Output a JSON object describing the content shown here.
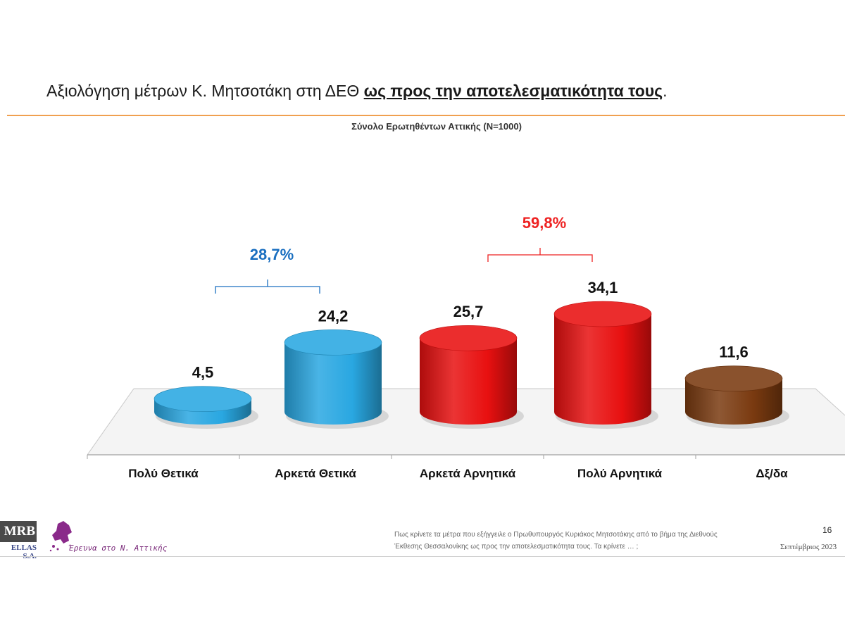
{
  "header": {
    "title_plain": "Αξιολόγηση μέτρων Κ. Μητσοτάκη στη ΔΕΘ ",
    "title_emph": "ως προς την αποτελεσματικότητα τους",
    "title_end": ".",
    "subtitle": "Σύνολο Ερωτηθέντων Αττικής (Ν=1000)"
  },
  "chart_data": {
    "type": "bar",
    "categories": [
      "Πολύ Θετικά",
      "Αρκετά Θετικά",
      "Αρκετά Αρνητικά",
      "Πολύ Αρνητικά",
      "Δξ/δα"
    ],
    "values": [
      4.5,
      24.2,
      25.7,
      34.1,
      11.6
    ],
    "value_labels": [
      "4,5",
      "24,2",
      "25,7",
      "34,1",
      "11,6"
    ],
    "colors": [
      "#29a7e1",
      "#29a7e1",
      "#e81010",
      "#e81010",
      "#7a3a10"
    ],
    "groups": [
      {
        "label": "28,7%",
        "categories": [
          0,
          1
        ],
        "color": "#1a6fc0"
      },
      {
        "label": "59,8%",
        "categories": [
          2,
          3
        ],
        "color": "#ee2222"
      }
    ],
    "title": "",
    "xlabel": "",
    "ylabel": "",
    "grid": false
  },
  "footer": {
    "logo_text": "MRB",
    "logo_subtext": "ELLAS S.A.",
    "brand": "Έρευνα στο Ν. Αττικής",
    "question_line1": "Πως κρίνετε τα μέτρα που εξήγγειλε ο Πρωθυπουργός Κυριάκος Μητσοτάκης από το βήμα της Διεθνούς",
    "question_line2": "Έκθεσης Θεσσαλονίκης ως προς την αποτελεσματικότητα τους. Τα κρίνετε … ;",
    "page_number": "16",
    "date": "Σεπτέμβριος 2023"
  }
}
